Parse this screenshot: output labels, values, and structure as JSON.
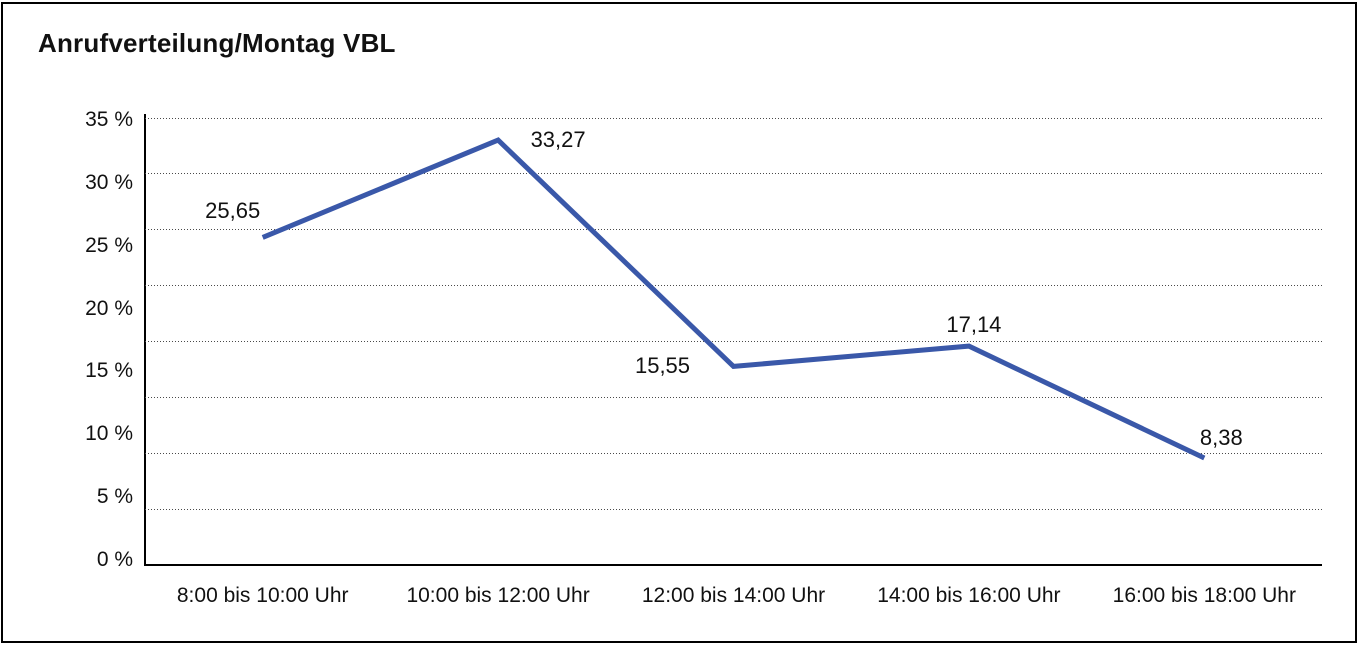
{
  "window": {
    "background": "#ffffff",
    "frame_border_color": "#000000"
  },
  "chart_data": {
    "type": "line",
    "title": "Anrufverteilung/Montag VBL",
    "categories": [
      "8:00 bis 10:00 Uhr",
      "10:00 bis 12:00 Uhr",
      "12:00 bis 14:00 Uhr",
      "14:00 bis 16:00 Uhr",
      "16:00 bis 18:00 Uhr"
    ],
    "values": [
      25.65,
      33.27,
      15.55,
      17.14,
      8.38
    ],
    "value_labels": [
      "25,65",
      "33,27",
      "15,55",
      "17,14",
      "8,38"
    ],
    "unit": "%",
    "xlabel": "",
    "ylabel": "",
    "ylim": [
      0,
      35
    ],
    "ytick_step": 5,
    "ytick_labels": [
      "35 %",
      "30 %",
      "25 %",
      "20 %",
      "15 %",
      "10 %",
      "5 %",
      "0 %"
    ],
    "grid": "horizontal-dotted",
    "gridline_count": 8,
    "legend": "none",
    "markers": "none",
    "line_color": "#3A58A9",
    "line_width": 5,
    "axis_color": "#000000",
    "gridline_color": "#4a4a4a",
    "text_color": "#111111"
  }
}
